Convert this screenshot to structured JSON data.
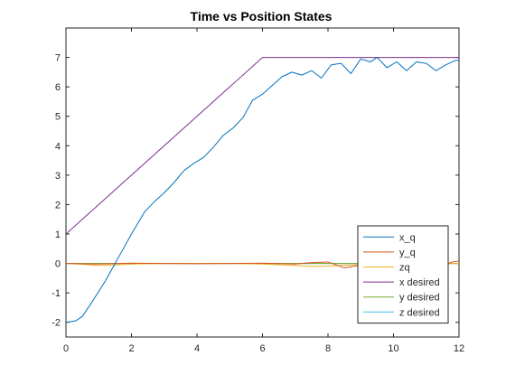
{
  "chart_data": {
    "type": "line",
    "title": "Time vs Position States",
    "xlabel": "",
    "ylabel": "",
    "xlim": [
      0,
      12
    ],
    "ylim": [
      -2.5,
      8
    ],
    "xticks": [
      0,
      2,
      4,
      6,
      8,
      10,
      12
    ],
    "yticks": [
      -2,
      -1,
      0,
      1,
      2,
      3,
      4,
      5,
      6,
      7
    ],
    "grid": false,
    "legend_position": "bottom-right",
    "series": [
      {
        "name": "x_q",
        "color": "#0072BD",
        "x": [
          0,
          0.3,
          0.5,
          0.8,
          1.2,
          1.6,
          2.0,
          2.4,
          2.7,
          3.0,
          3.3,
          3.6,
          3.9,
          4.2,
          4.5,
          4.8,
          5.1,
          5.4,
          5.7,
          6.0,
          6.3,
          6.6,
          6.9,
          7.2,
          7.5,
          7.8,
          8.1,
          8.4,
          8.7,
          9.0,
          9.3,
          9.5,
          9.8,
          10.1,
          10.4,
          10.7,
          11.0,
          11.3,
          11.6,
          11.9,
          12.0
        ],
        "y": [
          -2.0,
          -1.95,
          -1.8,
          -1.3,
          -0.6,
          0.2,
          1.0,
          1.75,
          2.1,
          2.4,
          2.75,
          3.15,
          3.4,
          3.6,
          3.95,
          4.35,
          4.6,
          4.95,
          5.55,
          5.75,
          6.05,
          6.35,
          6.5,
          6.4,
          6.55,
          6.3,
          6.75,
          6.8,
          6.45,
          6.95,
          6.85,
          7.0,
          6.65,
          6.85,
          6.55,
          6.85,
          6.8,
          6.55,
          6.75,
          6.9,
          6.9
        ]
      },
      {
        "name": "y_q",
        "color": "#D95319",
        "x": [
          0,
          1,
          2,
          3,
          4,
          5,
          6,
          7,
          7.5,
          8.0,
          8.5,
          9.0,
          9.5,
          10,
          10.5,
          11,
          11.5,
          11.8,
          12.0
        ],
        "y": [
          0,
          -0.02,
          0.01,
          0.0,
          -0.01,
          0.0,
          0.01,
          -0.02,
          0.03,
          0.05,
          -0.15,
          -0.05,
          -0.1,
          -0.05,
          -0.08,
          -0.02,
          -0.05,
          0.05,
          0.08
        ]
      },
      {
        "name": "zq",
        "color": "#EDB120",
        "x": [
          0,
          0.5,
          1.0,
          1.5,
          2.0,
          3.0,
          4.0,
          5.0,
          6.0,
          7.0,
          7.5,
          8.0,
          8.5,
          9.0,
          9.5,
          10.0,
          11.0,
          12.0
        ],
        "y": [
          0,
          -0.03,
          -0.07,
          -0.05,
          -0.02,
          0.0,
          0.0,
          0.0,
          -0.02,
          -0.07,
          -0.1,
          -0.09,
          -0.06,
          -0.04,
          -0.02,
          -0.02,
          -0.01,
          0.0
        ]
      },
      {
        "name": "x desired",
        "color": "#7E2F8E",
        "x": [
          0,
          6,
          12
        ],
        "y": [
          1,
          7,
          7
        ]
      },
      {
        "name": "y desired",
        "color": "#77AC30",
        "x": [
          0,
          12
        ],
        "y": [
          0,
          0
        ]
      },
      {
        "name": "z desired",
        "color": "#4DBEEE",
        "x": [
          0,
          12
        ],
        "y": [
          0,
          0
        ]
      }
    ]
  }
}
